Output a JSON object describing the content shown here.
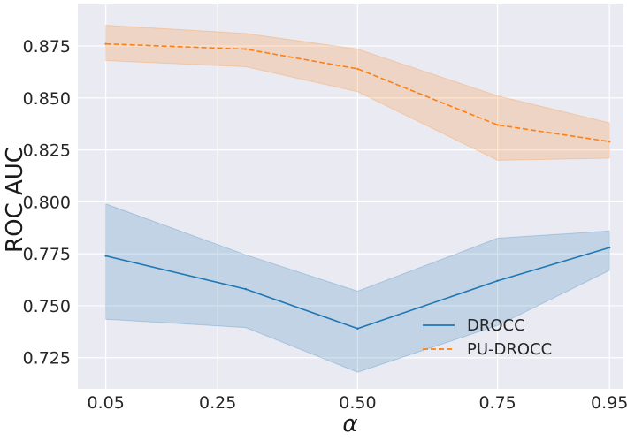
{
  "chart_data": {
    "type": "line",
    "title": "",
    "xlabel": "α",
    "ylabel": "ROC AUC",
    "x": [
      0.05,
      0.3,
      0.5,
      0.75,
      0.95
    ],
    "xticks": [
      0.05,
      0.25,
      0.5,
      0.75,
      0.95
    ],
    "xtick_labels": [
      "0.05",
      "0.25",
      "0.50",
      "0.75",
      "0.95"
    ],
    "xlim": [
      0.0,
      0.975
    ],
    "ylim": [
      0.71,
      0.895
    ],
    "yticks": [
      0.725,
      0.75,
      0.775,
      0.8,
      0.825,
      0.85,
      0.875
    ],
    "ytick_labels": [
      "0.725",
      "0.750",
      "0.775",
      "0.800",
      "0.825",
      "0.850",
      "0.875"
    ],
    "grid": true,
    "legend_position": "lower-right",
    "series": [
      {
        "name": "DROCC",
        "color": "#1f77b4",
        "style": "solid",
        "values": [
          0.774,
          0.758,
          0.739,
          0.762,
          0.778
        ],
        "lower": [
          0.7435,
          0.7395,
          0.718,
          0.7405,
          0.767
        ],
        "upper": [
          0.799,
          0.7745,
          0.757,
          0.7825,
          0.786
        ]
      },
      {
        "name": "PU-DROCC",
        "color": "#ff7f0e",
        "style": "dashed",
        "values": [
          0.876,
          0.8735,
          0.864,
          0.837,
          0.829
        ],
        "lower": [
          0.868,
          0.865,
          0.853,
          0.82,
          0.821
        ],
        "upper": [
          0.885,
          0.881,
          0.8735,
          0.851,
          0.838
        ]
      }
    ]
  }
}
